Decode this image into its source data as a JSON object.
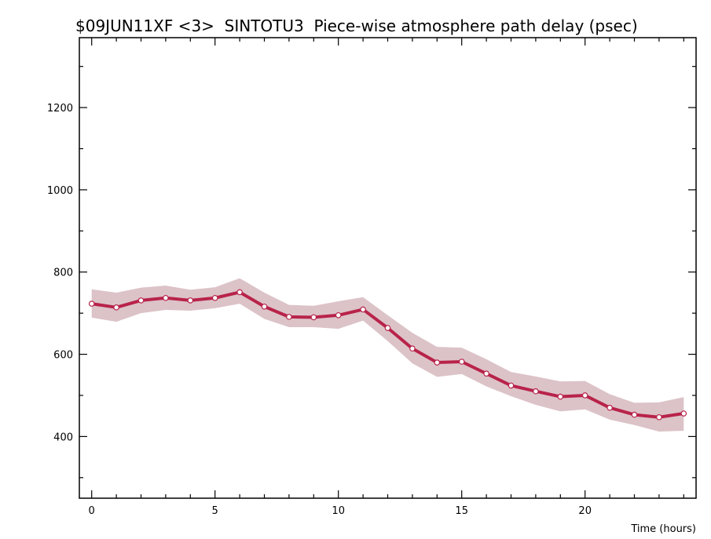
{
  "chart_data": {
    "type": "line",
    "title": "$09JUN11XF <3>  SINTOTU3  Piece-wise atmosphere path delay (psec)",
    "xlabel": "Time (hours)",
    "ylabel": "",
    "xlim": [
      -0.5,
      24.5
    ],
    "ylim": [
      250,
      1370
    ],
    "x_ticks": [
      0,
      5,
      10,
      15,
      20
    ],
    "y_ticks": [
      400,
      600,
      800,
      1000,
      1200
    ],
    "grid": false,
    "legend": "none",
    "colors": {
      "line": "#b8234a",
      "band": "#dcc3c8",
      "marker_fill": "#ffffff",
      "axis": "#000000"
    },
    "series": [
      {
        "x": [
          0,
          1,
          2,
          3,
          4,
          5,
          6,
          7,
          8,
          9,
          10,
          11,
          12,
          13,
          14,
          15,
          16,
          17,
          18,
          19,
          20,
          21,
          22,
          23,
          24
        ],
        "y": [
          723,
          714,
          731,
          737,
          731,
          737,
          751,
          716,
          691,
          690,
          695,
          709,
          664,
          614,
          580,
          582,
          553,
          524,
          510,
          497,
          500,
          470,
          453,
          447,
          456
        ],
        "y_upper": [
          758,
          750,
          762,
          767,
          757,
          763,
          785,
          750,
          720,
          718,
          729,
          739,
          695,
          652,
          618,
          616,
          588,
          557,
          546,
          534,
          535,
          503,
          482,
          483,
          496
        ],
        "y_lower": [
          689,
          679,
          700,
          708,
          706,
          712,
          723,
          686,
          666,
          666,
          662,
          682,
          632,
          578,
          545,
          552,
          522,
          498,
          477,
          461,
          466,
          441,
          428,
          412,
          414
        ]
      }
    ]
  }
}
